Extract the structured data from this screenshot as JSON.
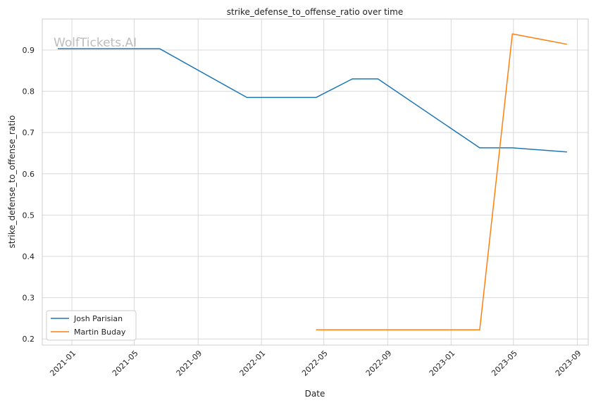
{
  "chart_data": {
    "type": "line",
    "title": "strike_defense_to_offense_ratio over time",
    "xlabel": "Date",
    "ylabel": "strike_defense_to_offense_ratio",
    "watermark": "WolfTickets.AI",
    "x_ticks": [
      "2021-01",
      "2021-05",
      "2021-09",
      "2022-01",
      "2022-05",
      "2022-09",
      "2023-01",
      "2023-05",
      "2023-09"
    ],
    "y_ticks": [
      "0.2",
      "0.3",
      "0.4",
      "0.5",
      "0.6",
      "0.7",
      "0.8",
      "0.9"
    ],
    "xlim": [
      "2020-11-05",
      "2023-09-22"
    ],
    "ylim": [
      0.185,
      0.975
    ],
    "grid": true,
    "legend_position": "lower-left",
    "series": [
      {
        "name": "Josh Parisian",
        "color": "#1f77b4",
        "points": [
          {
            "x": "2020-12-05",
            "y": 0.903
          },
          {
            "x": "2021-06-19",
            "y": 0.903
          },
          {
            "x": "2021-12-04",
            "y": 0.785
          },
          {
            "x": "2022-04-16",
            "y": 0.785
          },
          {
            "x": "2022-06-25",
            "y": 0.83
          },
          {
            "x": "2022-08-13",
            "y": 0.83
          },
          {
            "x": "2023-02-25",
            "y": 0.663
          },
          {
            "x": "2023-04-29",
            "y": 0.663
          },
          {
            "x": "2023-08-12",
            "y": 0.653
          }
        ]
      },
      {
        "name": "Martin Buday",
        "color": "#ff7f0e",
        "points": [
          {
            "x": "2022-04-16",
            "y": 0.222
          },
          {
            "x": "2023-02-25",
            "y": 0.222
          },
          {
            "x": "2023-04-29",
            "y": 0.939
          },
          {
            "x": "2023-08-12",
            "y": 0.914
          }
        ]
      }
    ]
  }
}
